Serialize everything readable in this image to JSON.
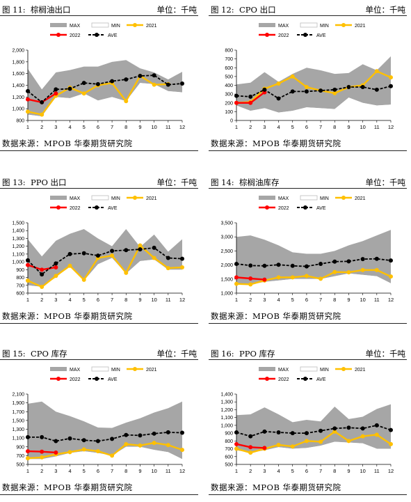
{
  "source_text": "数据来源：MPOB  华泰期货研究院",
  "legend_labels": {
    "max": "MAX",
    "min": "MIN",
    "y2021": "2021",
    "y2022": "2022",
    "ave": "AVE"
  },
  "colors": {
    "band": "#a6a6a6",
    "y2021": "#ffc000",
    "y2022": "#ff0000",
    "ave": "#000000"
  },
  "chart_data": [
    {
      "type": "line",
      "figure_label": "图 11:",
      "title": "棕榈油出口",
      "unit": "单位：千吨",
      "x": [
        1,
        2,
        3,
        4,
        5,
        6,
        7,
        8,
        9,
        10,
        11,
        12
      ],
      "ylim": [
        800,
        2000
      ],
      "yticks": [
        "800",
        "1,000",
        "1,200",
        "1,400",
        "1,600",
        "1,800",
        "2,000"
      ],
      "ytick_values": [
        800,
        1000,
        1200,
        1400,
        1600,
        1800,
        2000
      ],
      "max": [
        1680,
        1330,
        1620,
        1660,
        1720,
        1720,
        1800,
        1830,
        1690,
        1620,
        1500,
        1630
      ],
      "min": [
        900,
        870,
        1200,
        1180,
        1260,
        1140,
        1200,
        1130,
        1440,
        1420,
        1300,
        1280
      ],
      "series": [
        {
          "name": "2021",
          "values": [
            950,
            900,
            1220,
            1360,
            1260,
            1400,
            1440,
            1130,
            1560,
            1410,
            1420,
            null
          ]
        },
        {
          "name": "2022",
          "values": [
            1160,
            1110,
            1260,
            null,
            null,
            null,
            null,
            null,
            null,
            null,
            null,
            null
          ]
        },
        {
          "name": "AVE",
          "values": [
            1300,
            1110,
            1330,
            1340,
            1440,
            1420,
            1470,
            1500,
            1560,
            1570,
            1410,
            1430
          ]
        }
      ]
    },
    {
      "type": "line",
      "figure_label": "图 12:",
      "title": "CPO 出口",
      "unit": "单位：千吨",
      "x": [
        1,
        2,
        3,
        4,
        5,
        6,
        7,
        8,
        9,
        10,
        11,
        12
      ],
      "ylim": [
        0,
        800
      ],
      "yticks": [
        "0",
        "100",
        "200",
        "300",
        "400",
        "500",
        "600",
        "700",
        "800"
      ],
      "ytick_values": [
        0,
        100,
        200,
        300,
        400,
        500,
        600,
        700,
        800
      ],
      "max": [
        410,
        430,
        550,
        440,
        530,
        600,
        570,
        530,
        540,
        640,
        570,
        730
      ],
      "min": [
        170,
        110,
        140,
        90,
        110,
        150,
        140,
        130,
        260,
        200,
        170,
        180
      ],
      "series": [
        {
          "name": "2021",
          "values": [
            200,
            210,
            360,
            420,
            500,
            380,
            340,
            310,
            380,
            400,
            560,
            490
          ]
        },
        {
          "name": "2022",
          "values": [
            200,
            200,
            320,
            null,
            null,
            null,
            null,
            null,
            null,
            null,
            null,
            null
          ]
        },
        {
          "name": "AVE",
          "values": [
            280,
            270,
            350,
            250,
            330,
            330,
            340,
            350,
            380,
            380,
            350,
            390
          ]
        }
      ]
    },
    {
      "type": "line",
      "figure_label": "图 13:",
      "title": "PPO 出口",
      "unit": "单位：千吨",
      "x": [
        1,
        2,
        3,
        4,
        5,
        6,
        7,
        8,
        9,
        10,
        11,
        12
      ],
      "ylim": [
        600,
        1500
      ],
      "yticks": [
        "600",
        "700",
        "800",
        "900",
        "1,000",
        "1,100",
        "1,200",
        "1,300",
        "1,400",
        "1,500"
      ],
      "ytick_values": [
        600,
        700,
        800,
        900,
        1000,
        1100,
        1200,
        1300,
        1400,
        1500
      ],
      "max": [
        1290,
        1070,
        1270,
        1360,
        1420,
        1300,
        1200,
        1420,
        1190,
        1350,
        1130,
        1290
      ],
      "min": [
        700,
        680,
        800,
        950,
        760,
        970,
        1050,
        850,
        1010,
        1030,
        900,
        900
      ],
      "series": [
        {
          "name": "2021",
          "values": [
            760,
            680,
            820,
            950,
            770,
            1050,
            1080,
            860,
            1210,
            1050,
            920,
            930
          ]
        },
        {
          "name": "2022",
          "values": [
            960,
            900,
            930,
            null,
            null,
            null,
            null,
            null,
            null,
            null,
            null,
            null
          ]
        },
        {
          "name": "AVE",
          "values": [
            1020,
            840,
            980,
            1100,
            1110,
            1080,
            1140,
            1150,
            1160,
            1180,
            1050,
            1040
          ]
        }
      ]
    },
    {
      "type": "line",
      "figure_label": "图 14:",
      "title": "棕榈油库存",
      "unit": "单位：千吨",
      "x": [
        1,
        2,
        3,
        4,
        5,
        6,
        7,
        8,
        9,
        10,
        11,
        12
      ],
      "ylim": [
        1000,
        3500
      ],
      "yticks": [
        "1,000",
        "1,500",
        "2,000",
        "2,500",
        "3,000",
        "3,500"
      ],
      "ytick_values": [
        1000,
        1500,
        2000,
        2500,
        3000,
        3500
      ],
      "max": [
        3000,
        3050,
        2900,
        2700,
        2450,
        2400,
        2400,
        2500,
        2700,
        2850,
        3050,
        3250
      ],
      "min": [
        1300,
        1300,
        1400,
        1450,
        1500,
        1500,
        1500,
        1600,
        1700,
        1650,
        1600,
        1350
      ],
      "series": [
        {
          "name": "2021",
          "values": [
            1330,
            1310,
            1450,
            1560,
            1560,
            1610,
            1510,
            1750,
            1740,
            1820,
            1820,
            1590
          ]
        },
        {
          "name": "2022",
          "values": [
            1560,
            1520,
            1480,
            null,
            null,
            null,
            null,
            null,
            null,
            null,
            null,
            null
          ]
        },
        {
          "name": "AVE",
          "values": [
            2040,
            1980,
            1970,
            2010,
            1970,
            1950,
            2040,
            2120,
            2130,
            2210,
            2220,
            2160
          ]
        }
      ]
    },
    {
      "type": "line",
      "figure_label": "图 15:",
      "title": "CPO 库存",
      "unit": "单位：千吨",
      "x": [
        1,
        2,
        3,
        4,
        5,
        6,
        7,
        8,
        9,
        10,
        11,
        12
      ],
      "ylim": [
        500,
        2100
      ],
      "yticks": [
        "500",
        "700",
        "900",
        "1,100",
        "1,300",
        "1,500",
        "1,700",
        "1,900",
        "2,100"
      ],
      "ytick_values": [
        500,
        700,
        900,
        1100,
        1300,
        1500,
        1700,
        1900,
        2100
      ],
      "max": [
        1880,
        1930,
        1700,
        1600,
        1480,
        1340,
        1330,
        1450,
        1550,
        1680,
        1780,
        1930
      ],
      "min": [
        620,
        620,
        680,
        760,
        800,
        760,
        700,
        900,
        900,
        830,
        780,
        620
      ],
      "series": [
        {
          "name": "2021",
          "values": [
            640,
            660,
            730,
            780,
            840,
            800,
            700,
            960,
            930,
            990,
            940,
            830
          ]
        },
        {
          "name": "2022",
          "values": [
            800,
            790,
            770,
            null,
            null,
            null,
            null,
            null,
            null,
            null,
            null,
            null
          ]
        },
        {
          "name": "AVE",
          "values": [
            1120,
            1120,
            1030,
            1090,
            1050,
            1030,
            1080,
            1170,
            1160,
            1200,
            1230,
            1220
          ]
        }
      ]
    },
    {
      "type": "line",
      "figure_label": "图 16:",
      "title": "PPO 库存",
      "unit": "单位：千吨",
      "x": [
        1,
        2,
        3,
        4,
        5,
        6,
        7,
        8,
        9,
        10,
        11,
        12
      ],
      "ylim": [
        500,
        1400
      ],
      "yticks": [
        "500",
        "600",
        "700",
        "800",
        "900",
        "1,000",
        "1,100",
        "1,200",
        "1,300",
        "1,400"
      ],
      "ytick_values": [
        500,
        600,
        700,
        800,
        900,
        1000,
        1100,
        1200,
        1300,
        1400
      ],
      "max": [
        1130,
        1140,
        1230,
        1140,
        1040,
        1070,
        1050,
        1240,
        1080,
        1110,
        1210,
        1270
      ],
      "min": [
        680,
        650,
        680,
        720,
        700,
        710,
        740,
        790,
        780,
        770,
        700,
        700
      ],
      "series": [
        {
          "name": "2021",
          "values": [
            700,
            650,
            700,
            750,
            730,
            800,
            790,
            920,
            800,
            860,
            880,
            760
          ]
        },
        {
          "name": "2022",
          "values": [
            760,
            720,
            710,
            null,
            null,
            null,
            null,
            null,
            null,
            null,
            null,
            null
          ]
        },
        {
          "name": "AVE",
          "values": [
            910,
            860,
            920,
            910,
            900,
            900,
            930,
            960,
            970,
            960,
            1000,
            940
          ]
        }
      ]
    }
  ]
}
